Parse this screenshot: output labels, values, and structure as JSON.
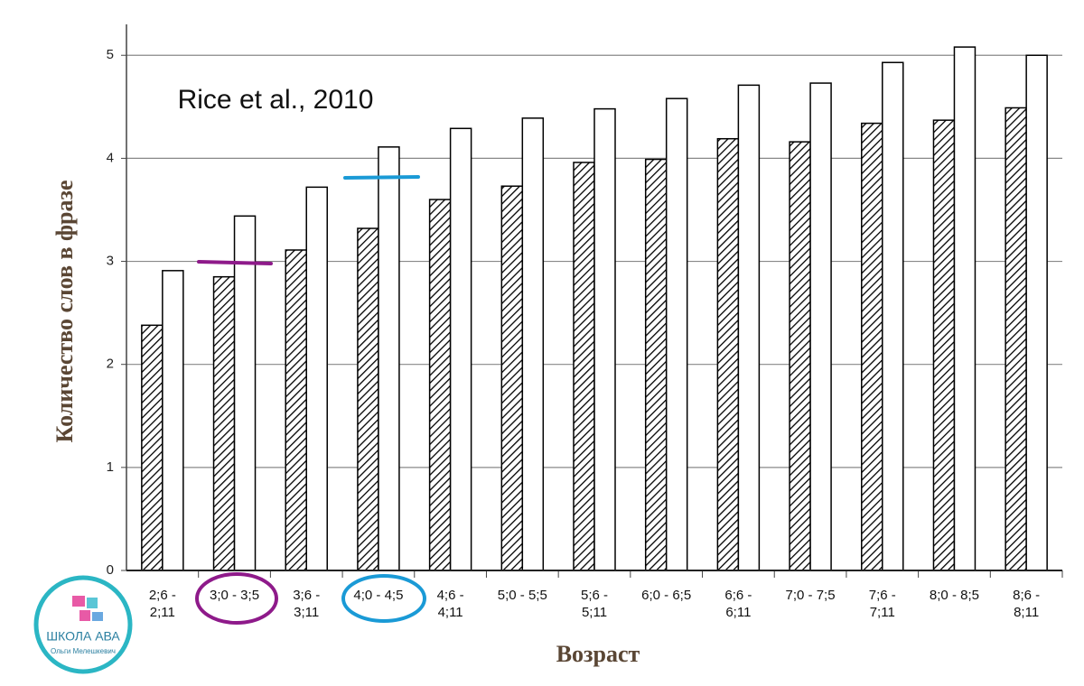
{
  "chart_data": {
    "type": "bar",
    "annotation": "Rice et al., 2010",
    "ylabel": "Количество слов в фразе",
    "xlabel": "Возраст",
    "categories": [
      "2;6 -\n2;11",
      "3;0 - 3;5",
      "3;6 -\n3;11",
      "4;0 - 4;5",
      "4;6 -\n4;11",
      "5;0 - 5;5",
      "5;6 -\n5;11",
      "6;0 - 6;5",
      "6;6 -\n6;11",
      "7;0 - 7;5",
      "7;6 -\n7;11",
      "8;0 - 8;5",
      "8;6 -\n8;11"
    ],
    "series": [
      {
        "color": "#000000",
        "hatch": true,
        "values": [
          2.38,
          2.85,
          3.11,
          3.32,
          3.6,
          3.73,
          3.96,
          3.99,
          4.19,
          4.16,
          4.34,
          4.37,
          4.49
        ]
      },
      {
        "color": "#ffffff",
        "hatch": false,
        "values": [
          2.91,
          3.44,
          3.72,
          4.11,
          4.29,
          4.39,
          4.48,
          4.58,
          4.71,
          4.73,
          4.93,
          5.08,
          5.0
        ]
      }
    ],
    "ylim": [
      0,
      5.3
    ],
    "yticks": [
      0,
      1,
      2,
      3,
      4,
      5
    ],
    "grid": true
  },
  "logo": {
    "title": "ШКОЛА АВА",
    "subtitle": "Ольги Мелешкевич"
  }
}
